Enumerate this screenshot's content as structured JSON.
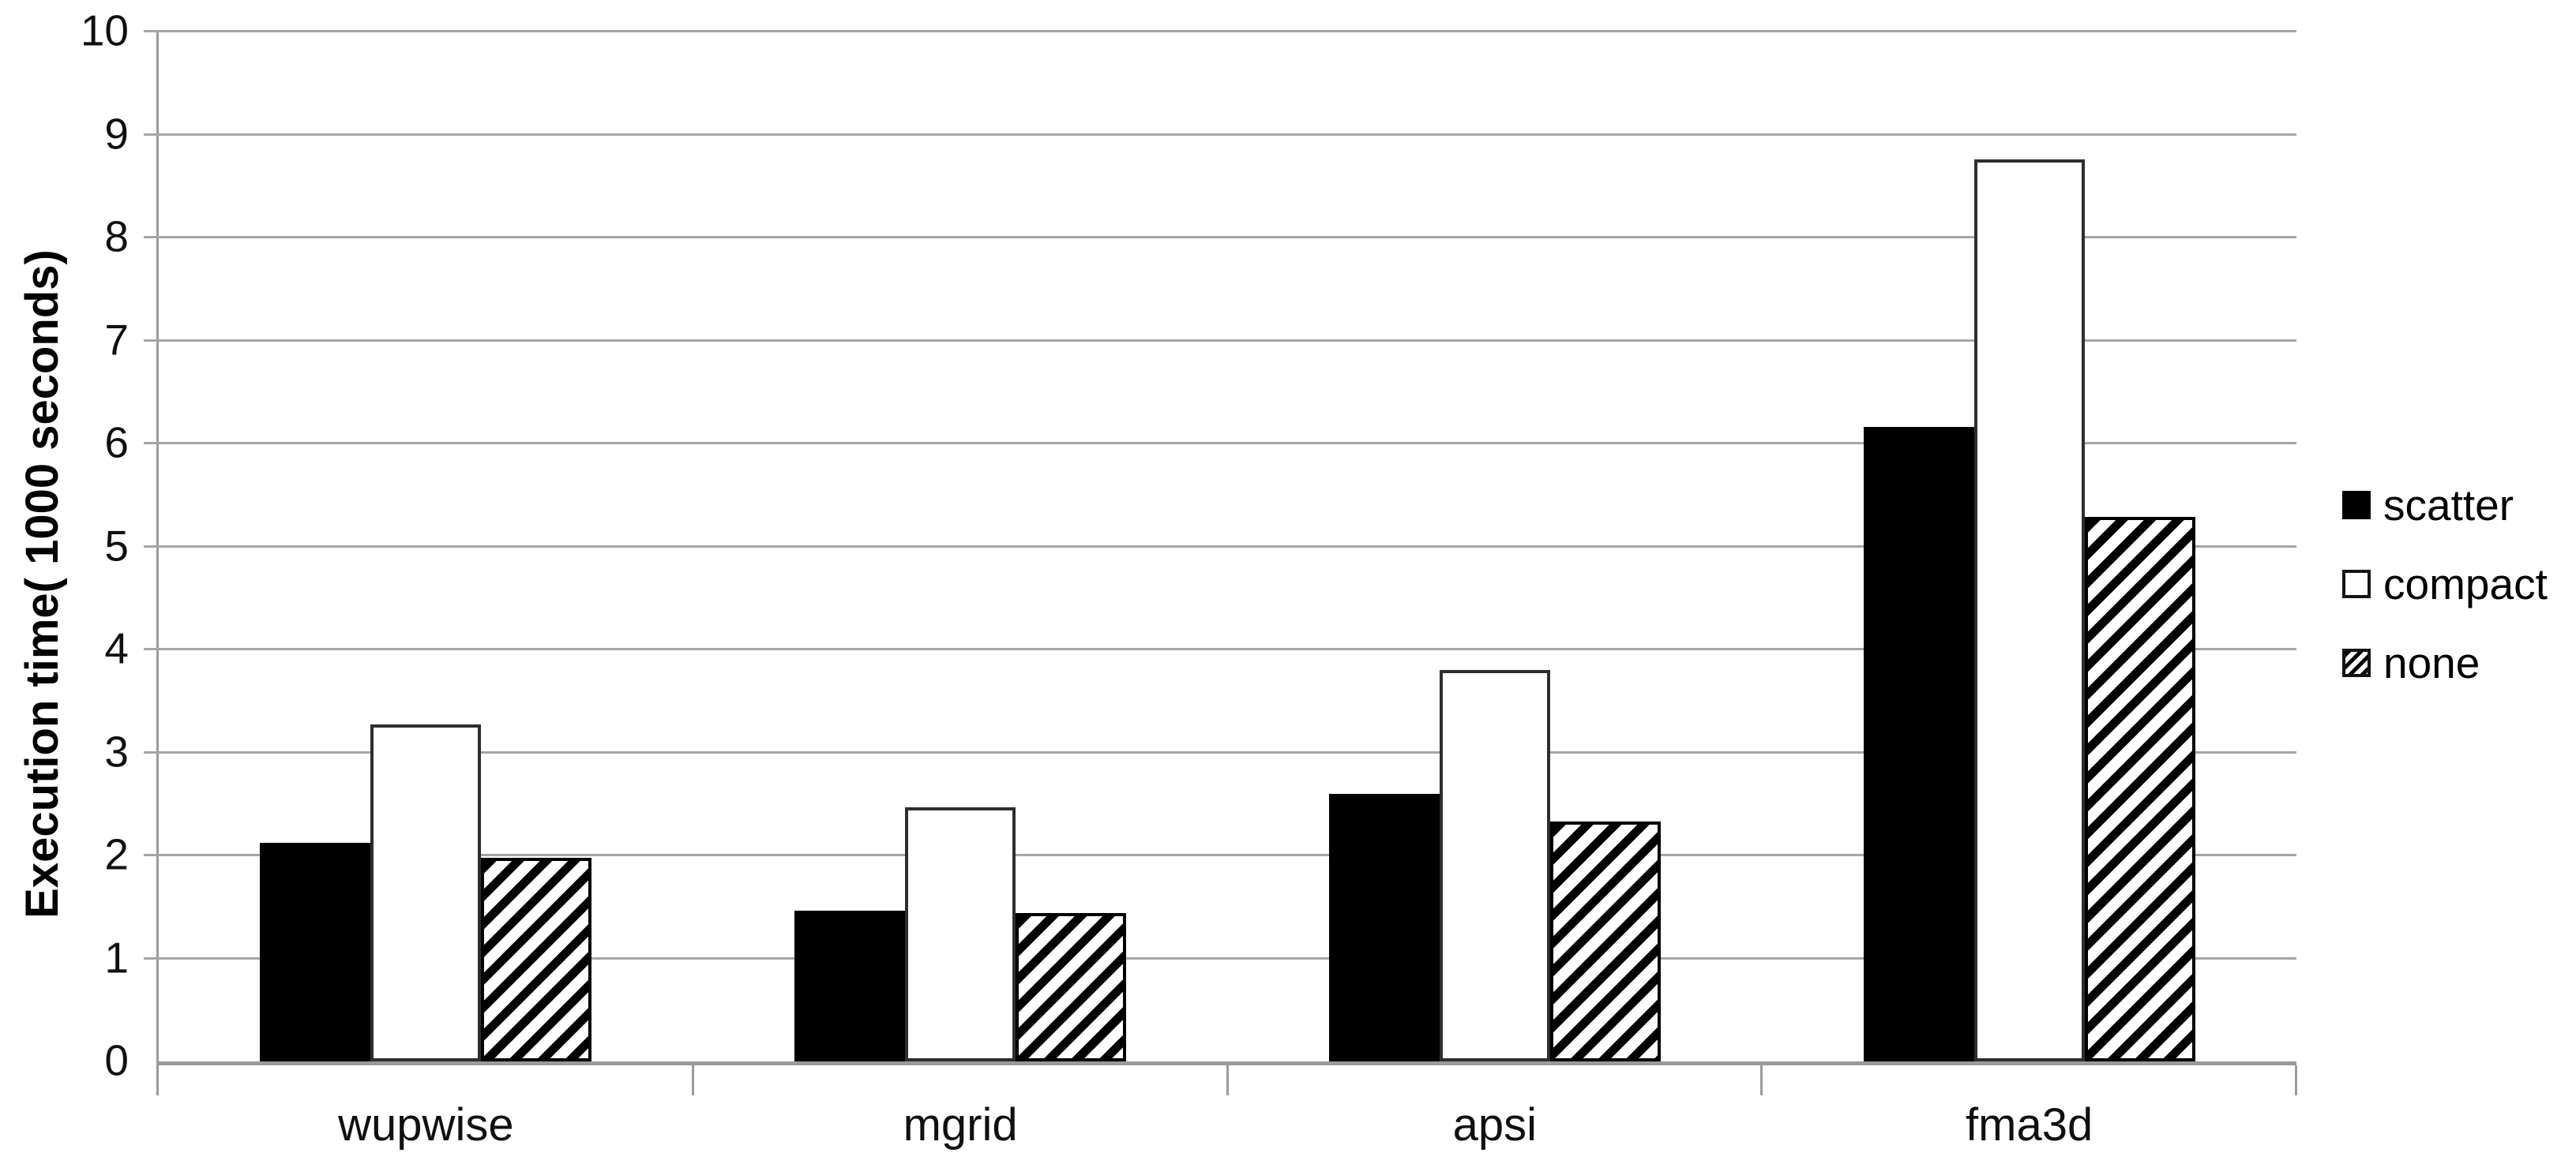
{
  "chart_data": {
    "type": "bar",
    "title": "",
    "xlabel": "",
    "ylabel": "Execution time( 1000 seconds)",
    "categories": [
      "wupwise",
      "mgrid",
      "apsi",
      "fma3d"
    ],
    "series": [
      {
        "name": "scatter",
        "pattern": "solid-black",
        "values": [
          2.12,
          1.46,
          2.6,
          6.16
        ]
      },
      {
        "name": "compact",
        "pattern": "white-outline",
        "values": [
          3.27,
          2.47,
          3.8,
          8.76
        ]
      },
      {
        "name": "none",
        "pattern": "diagonal-hatch",
        "values": [
          1.98,
          1.44,
          2.33,
          5.29
        ]
      }
    ],
    "ylim": [
      0,
      10
    ],
    "yticks": [
      "0",
      "1",
      "2",
      "3",
      "4",
      "5",
      "6",
      "7",
      "8",
      "9",
      "10"
    ],
    "grid": "horizontal",
    "legend_position": "right"
  },
  "legend": {
    "items": [
      {
        "label": "scatter",
        "swatch": "solid-black"
      },
      {
        "label": "compact",
        "swatch": "white-outline"
      },
      {
        "label": "none",
        "swatch": "diagonal-hatch"
      }
    ]
  },
  "colors": {
    "bar_fill": "#000000",
    "bar_outline": "#2e2e2e",
    "gridline": "#a5a5a5",
    "axis": "#9a9a9a",
    "text": "#000000",
    "background": "#ffffff"
  }
}
